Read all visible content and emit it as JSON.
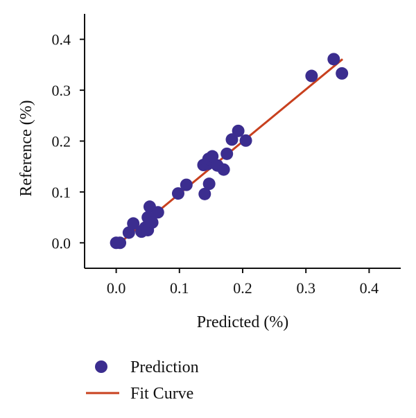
{
  "chart_data": {
    "type": "scatter",
    "title": "",
    "xlabel": "Predicted (%)",
    "ylabel": "Reference (%)",
    "xlim": [
      -0.05,
      0.45
    ],
    "ylim": [
      -0.05,
      0.45
    ],
    "x_ticks": [
      0.0,
      0.1,
      0.2,
      0.3,
      0.4
    ],
    "y_ticks": [
      0.0,
      0.1,
      0.2,
      0.3,
      0.4
    ],
    "x_tick_labels": [
      "0.0",
      "0.1",
      "0.2",
      "0.3",
      "0.4"
    ],
    "y_tick_labels": [
      "0.0",
      "0.1",
      "0.2",
      "0.3",
      "0.4"
    ],
    "grid": false,
    "legend_position": "bottom-left",
    "series": [
      {
        "name": "Prediction",
        "kind": "scatter",
        "color": "#3b2d8f",
        "points": [
          {
            "x": 0.0,
            "y": 0.0
          },
          {
            "x": 0.006,
            "y": 0.0
          },
          {
            "x": 0.02,
            "y": 0.02
          },
          {
            "x": 0.027,
            "y": 0.038
          },
          {
            "x": 0.04,
            "y": 0.022
          },
          {
            "x": 0.046,
            "y": 0.03
          },
          {
            "x": 0.05,
            "y": 0.05
          },
          {
            "x": 0.05,
            "y": 0.025
          },
          {
            "x": 0.053,
            "y": 0.071
          },
          {
            "x": 0.057,
            "y": 0.04
          },
          {
            "x": 0.066,
            "y": 0.06
          },
          {
            "x": 0.098,
            "y": 0.097
          },
          {
            "x": 0.111,
            "y": 0.114
          },
          {
            "x": 0.138,
            "y": 0.153
          },
          {
            "x": 0.14,
            "y": 0.096
          },
          {
            "x": 0.145,
            "y": 0.155
          },
          {
            "x": 0.146,
            "y": 0.165
          },
          {
            "x": 0.147,
            "y": 0.116
          },
          {
            "x": 0.152,
            "y": 0.17
          },
          {
            "x": 0.16,
            "y": 0.152
          },
          {
            "x": 0.17,
            "y": 0.144
          },
          {
            "x": 0.175,
            "y": 0.175
          },
          {
            "x": 0.183,
            "y": 0.203
          },
          {
            "x": 0.193,
            "y": 0.22
          },
          {
            "x": 0.205,
            "y": 0.201
          },
          {
            "x": 0.309,
            "y": 0.328
          },
          {
            "x": 0.344,
            "y": 0.361
          },
          {
            "x": 0.357,
            "y": 0.333
          }
        ]
      },
      {
        "name": "Fit Curve",
        "kind": "line",
        "color": "#c8401e",
        "points": [
          {
            "x": 0.0,
            "y": -0.006
          },
          {
            "x": 0.358,
            "y": 0.361
          }
        ]
      }
    ],
    "legend": [
      {
        "label": "Prediction",
        "marker": "circle",
        "color": "#3b2d8f"
      },
      {
        "label": "Fit Curve",
        "marker": "line",
        "color": "#c8401e"
      }
    ]
  }
}
